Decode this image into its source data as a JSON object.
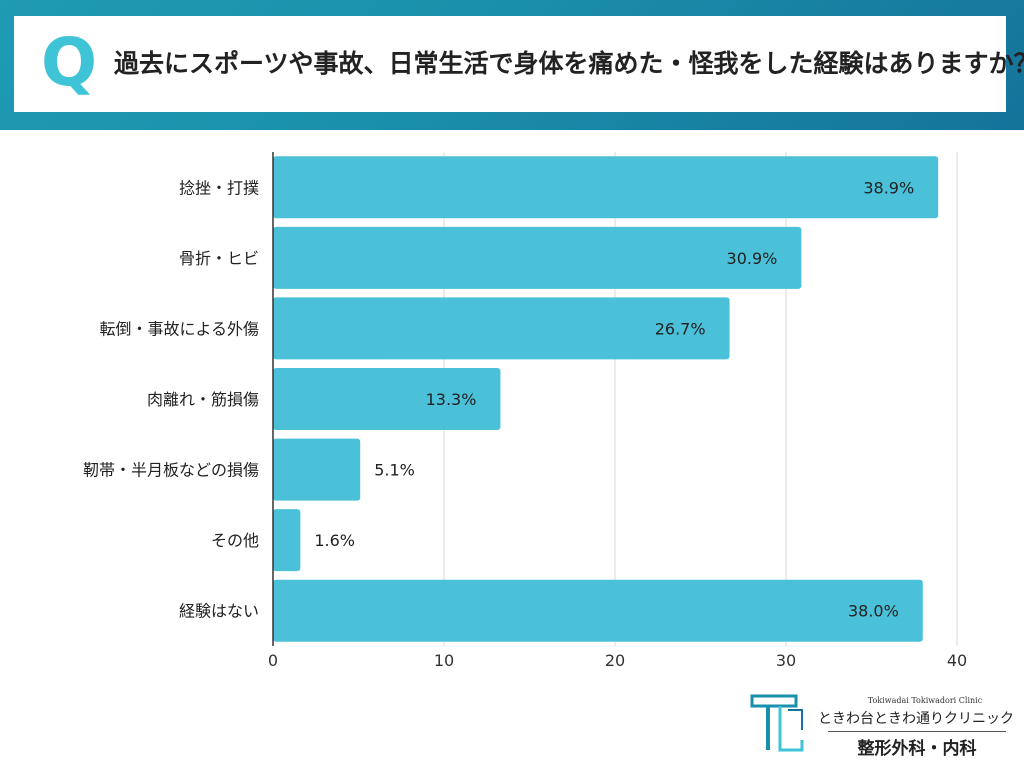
{
  "header": {
    "q_mark": "Q",
    "question": "過去にスポーツや事故、日常生活で身体を痛めた・怪我をした経験はありますか？"
  },
  "chart_data": {
    "type": "bar",
    "orientation": "horizontal",
    "categories": [
      "捻挫・打撲",
      "骨折・ヒビ",
      "転倒・事故による外傷",
      "肉離れ・筋損傷",
      "靭帯・半月板などの損傷",
      "その他",
      "経験はない"
    ],
    "values": [
      38.9,
      30.9,
      26.7,
      13.3,
      5.1,
      1.6,
      38.0
    ],
    "labels": [
      "38.9%",
      "30.9%",
      "26.7%",
      "13.3%",
      "5.1%",
      "1.6%",
      "38.0%"
    ],
    "xticks": [
      "0",
      "10",
      "20",
      "30",
      "40"
    ],
    "xlim": [
      0,
      40
    ],
    "grid": true,
    "bar_color": "#4bc0d9"
  },
  "logo": {
    "subtitle": "Tokiwadai Tokiwadori Clinic",
    "name": "ときわ台ときわ通りクリニック",
    "department": "整形外科・内科"
  }
}
